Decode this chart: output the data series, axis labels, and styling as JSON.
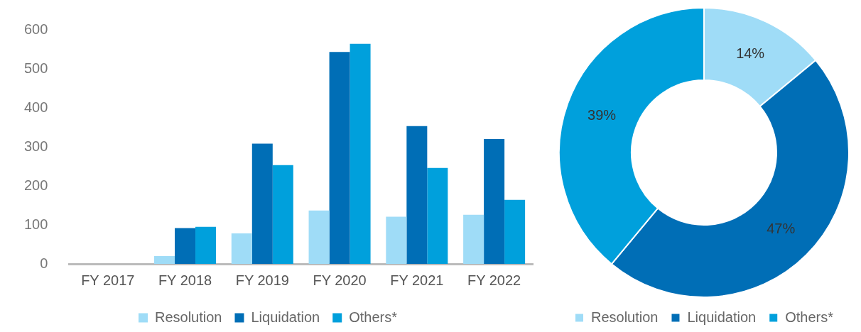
{
  "chart_data": [
    {
      "type": "bar",
      "categories": [
        "FY 2017",
        "FY 2018",
        "FY 2019",
        "FY 2020",
        "FY 2021",
        "FY 2022"
      ],
      "series": [
        {
          "name": "Resolution",
          "color": "#9fdcf7",
          "values": [
            0,
            20,
            78,
            137,
            121,
            126
          ]
        },
        {
          "name": "Liquidation",
          "color": "#006eb6",
          "values": [
            0,
            92,
            308,
            543,
            353,
            320
          ]
        },
        {
          "name": "Others*",
          "color": "#00a0dc",
          "values": [
            0,
            95,
            253,
            564,
            246,
            164
          ]
        }
      ],
      "ylim": [
        0,
        600
      ],
      "yticks": [
        0,
        100,
        200,
        300,
        400,
        500,
        600
      ],
      "legend": "bottom"
    },
    {
      "type": "donut",
      "categories": [
        "Resolution",
        "Liquidation",
        "Others*"
      ],
      "values": [
        14,
        47,
        39
      ],
      "colors": [
        "#9fdcf7",
        "#006eb6",
        "#00a0dc"
      ],
      "value_labels": [
        "14%",
        "47%",
        "39%"
      ],
      "legend": "bottom"
    }
  ]
}
